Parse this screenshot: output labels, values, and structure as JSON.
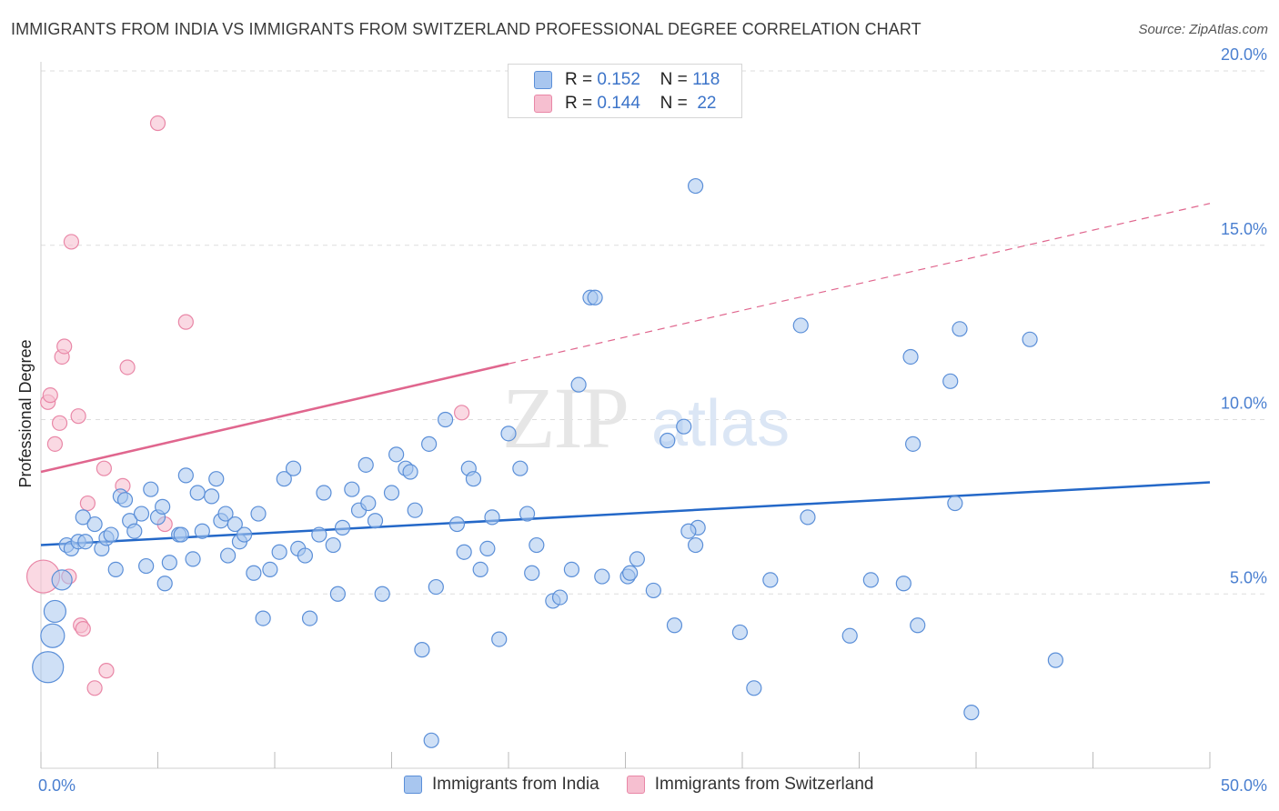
{
  "title": "IMMIGRANTS FROM INDIA VS IMMIGRANTS FROM SWITZERLAND PROFESSIONAL DEGREE CORRELATION CHART",
  "source": "Source: ZipAtlas.com",
  "watermark": {
    "zip": "ZIP",
    "atlas": "atlas"
  },
  "stats": {
    "india": {
      "r_label": "R =",
      "r_value": "0.152",
      "n_label": "N =",
      "n_value": "118"
    },
    "switzerland": {
      "r_label": "R =",
      "r_value": "0.144",
      "n_label": "N =",
      "n_value": "22"
    }
  },
  "legend": {
    "india": "Immigrants from India",
    "switzerland": "Immigrants from Switzerland"
  },
  "colors": {
    "india_fill": "#a8c6ef",
    "india_stroke": "#5b8fd8",
    "india_line": "#2468c8",
    "switz_fill": "#f6bfd0",
    "switz_stroke": "#e987a7",
    "switz_line": "#e0668e",
    "tick_text": "#4a7fd0",
    "grid": "#dddddd"
  },
  "chart_data": {
    "type": "scatter",
    "title": "IMMIGRANTS FROM INDIA VS IMMIGRANTS FROM SWITZERLAND PROFESSIONAL DEGREE CORRELATION CHART",
    "xlabel": "",
    "ylabel": "Professional Degree",
    "xlim": [
      0,
      50
    ],
    "ylim": [
      0,
      20
    ],
    "x_tick_labels": [
      "0.0%",
      "50.0%"
    ],
    "y_ticks": [
      5,
      10,
      15,
      20
    ],
    "y_tick_labels": [
      "5.0%",
      "10.0%",
      "15.0%",
      "20.0%"
    ],
    "grid": true,
    "legend_position": "bottom",
    "series": [
      {
        "name": "Immigrants from India",
        "trend": {
          "x": [
            0,
            50
          ],
          "y": [
            6.4,
            8.2
          ],
          "dashed_from": null
        },
        "points": [
          [
            0.3,
            2.9
          ],
          [
            0.5,
            3.8
          ],
          [
            0.6,
            4.5
          ],
          [
            0.9,
            5.4
          ],
          [
            1.1,
            6.4
          ],
          [
            1.3,
            6.3
          ],
          [
            1.6,
            6.5
          ],
          [
            1.8,
            7.2
          ],
          [
            1.9,
            6.5
          ],
          [
            2.3,
            7.0
          ],
          [
            2.6,
            6.3
          ],
          [
            2.8,
            6.6
          ],
          [
            3.0,
            6.7
          ],
          [
            3.2,
            5.7
          ],
          [
            3.4,
            7.8
          ],
          [
            3.6,
            7.7
          ],
          [
            3.8,
            7.1
          ],
          [
            4.0,
            6.8
          ],
          [
            4.3,
            7.3
          ],
          [
            4.5,
            5.8
          ],
          [
            4.7,
            8.0
          ],
          [
            5.0,
            7.2
          ],
          [
            5.2,
            7.5
          ],
          [
            5.3,
            5.3
          ],
          [
            5.5,
            5.9
          ],
          [
            5.9,
            6.7
          ],
          [
            6.0,
            6.7
          ],
          [
            6.2,
            8.4
          ],
          [
            6.5,
            6.0
          ],
          [
            6.7,
            7.9
          ],
          [
            6.9,
            6.8
          ],
          [
            7.3,
            7.8
          ],
          [
            7.5,
            8.3
          ],
          [
            7.7,
            7.1
          ],
          [
            7.9,
            7.3
          ],
          [
            8.0,
            6.1
          ],
          [
            8.3,
            7.0
          ],
          [
            8.5,
            6.5
          ],
          [
            8.7,
            6.7
          ],
          [
            9.1,
            5.6
          ],
          [
            9.3,
            7.3
          ],
          [
            9.5,
            4.3
          ],
          [
            9.8,
            5.7
          ],
          [
            10.2,
            6.2
          ],
          [
            10.4,
            8.3
          ],
          [
            10.8,
            8.6
          ],
          [
            11.0,
            6.3
          ],
          [
            11.3,
            6.1
          ],
          [
            11.5,
            4.3
          ],
          [
            11.9,
            6.7
          ],
          [
            12.1,
            7.9
          ],
          [
            12.5,
            6.4
          ],
          [
            12.7,
            5.0
          ],
          [
            12.9,
            6.9
          ],
          [
            13.3,
            8.0
          ],
          [
            13.6,
            7.4
          ],
          [
            13.9,
            8.7
          ],
          [
            14.0,
            7.6
          ],
          [
            14.3,
            7.1
          ],
          [
            14.6,
            5.0
          ],
          [
            15.0,
            7.9
          ],
          [
            15.2,
            9.0
          ],
          [
            15.6,
            8.6
          ],
          [
            15.8,
            8.5
          ],
          [
            16.0,
            7.4
          ],
          [
            16.3,
            3.4
          ],
          [
            16.6,
            9.3
          ],
          [
            16.7,
            0.8
          ],
          [
            16.9,
            5.2
          ],
          [
            17.3,
            10.0
          ],
          [
            17.8,
            7.0
          ],
          [
            18.1,
            6.2
          ],
          [
            18.3,
            8.6
          ],
          [
            18.5,
            8.3
          ],
          [
            18.8,
            5.7
          ],
          [
            19.1,
            6.3
          ],
          [
            19.3,
            7.2
          ],
          [
            19.6,
            3.7
          ],
          [
            20.0,
            9.6
          ],
          [
            20.5,
            8.6
          ],
          [
            20.8,
            7.3
          ],
          [
            21.0,
            5.6
          ],
          [
            21.2,
            6.4
          ],
          [
            21.9,
            4.8
          ],
          [
            22.2,
            4.9
          ],
          [
            22.7,
            5.7
          ],
          [
            23.0,
            11.0
          ],
          [
            23.5,
            13.5
          ],
          [
            23.7,
            13.5
          ],
          [
            24.0,
            5.5
          ],
          [
            25.1,
            5.5
          ],
          [
            25.2,
            5.6
          ],
          [
            25.5,
            6.0
          ],
          [
            26.2,
            5.1
          ],
          [
            26.8,
            9.4
          ],
          [
            27.1,
            4.1
          ],
          [
            27.5,
            9.8
          ],
          [
            28.0,
            16.7
          ],
          [
            28.0,
            6.4
          ],
          [
            28.1,
            6.9
          ],
          [
            29.9,
            3.9
          ],
          [
            30.5,
            2.3
          ],
          [
            31.2,
            5.4
          ],
          [
            32.5,
            12.7
          ],
          [
            32.8,
            7.2
          ],
          [
            34.6,
            3.8
          ],
          [
            35.5,
            5.4
          ],
          [
            36.9,
            5.3
          ],
          [
            37.2,
            11.8
          ],
          [
            37.3,
            9.3
          ],
          [
            37.5,
            4.1
          ],
          [
            38.9,
            11.1
          ],
          [
            39.1,
            7.6
          ],
          [
            39.3,
            12.6
          ],
          [
            39.8,
            1.6
          ],
          [
            42.3,
            12.3
          ],
          [
            43.4,
            3.1
          ],
          [
            27.7,
            6.8
          ]
        ],
        "point_sizes_large": {
          "0.3,2.9": "large",
          "0.5,3.8": "medium",
          "0.6,4.5": "medium",
          "0.9,5.4": "medium"
        }
      },
      {
        "name": "Immigrants from Switzerland",
        "trend": {
          "x": [
            0,
            20
          ],
          "y": [
            8.5,
            11.6
          ],
          "dashed_to": [
            50,
            16.2
          ]
        },
        "points": [
          [
            0.1,
            5.5
          ],
          [
            0.3,
            10.5
          ],
          [
            0.4,
            10.7
          ],
          [
            0.6,
            9.3
          ],
          [
            0.8,
            9.9
          ],
          [
            0.9,
            11.8
          ],
          [
            1.0,
            12.1
          ],
          [
            1.2,
            5.5
          ],
          [
            1.3,
            15.1
          ],
          [
            1.6,
            10.1
          ],
          [
            1.7,
            4.1
          ],
          [
            1.8,
            4.0
          ],
          [
            2.0,
            7.6
          ],
          [
            2.3,
            2.3
          ],
          [
            2.7,
            8.6
          ],
          [
            2.8,
            2.8
          ],
          [
            3.5,
            8.1
          ],
          [
            3.7,
            11.5
          ],
          [
            5.0,
            18.5
          ],
          [
            5.3,
            7.0
          ],
          [
            6.2,
            12.8
          ],
          [
            18.0,
            10.2
          ]
        ]
      }
    ]
  }
}
